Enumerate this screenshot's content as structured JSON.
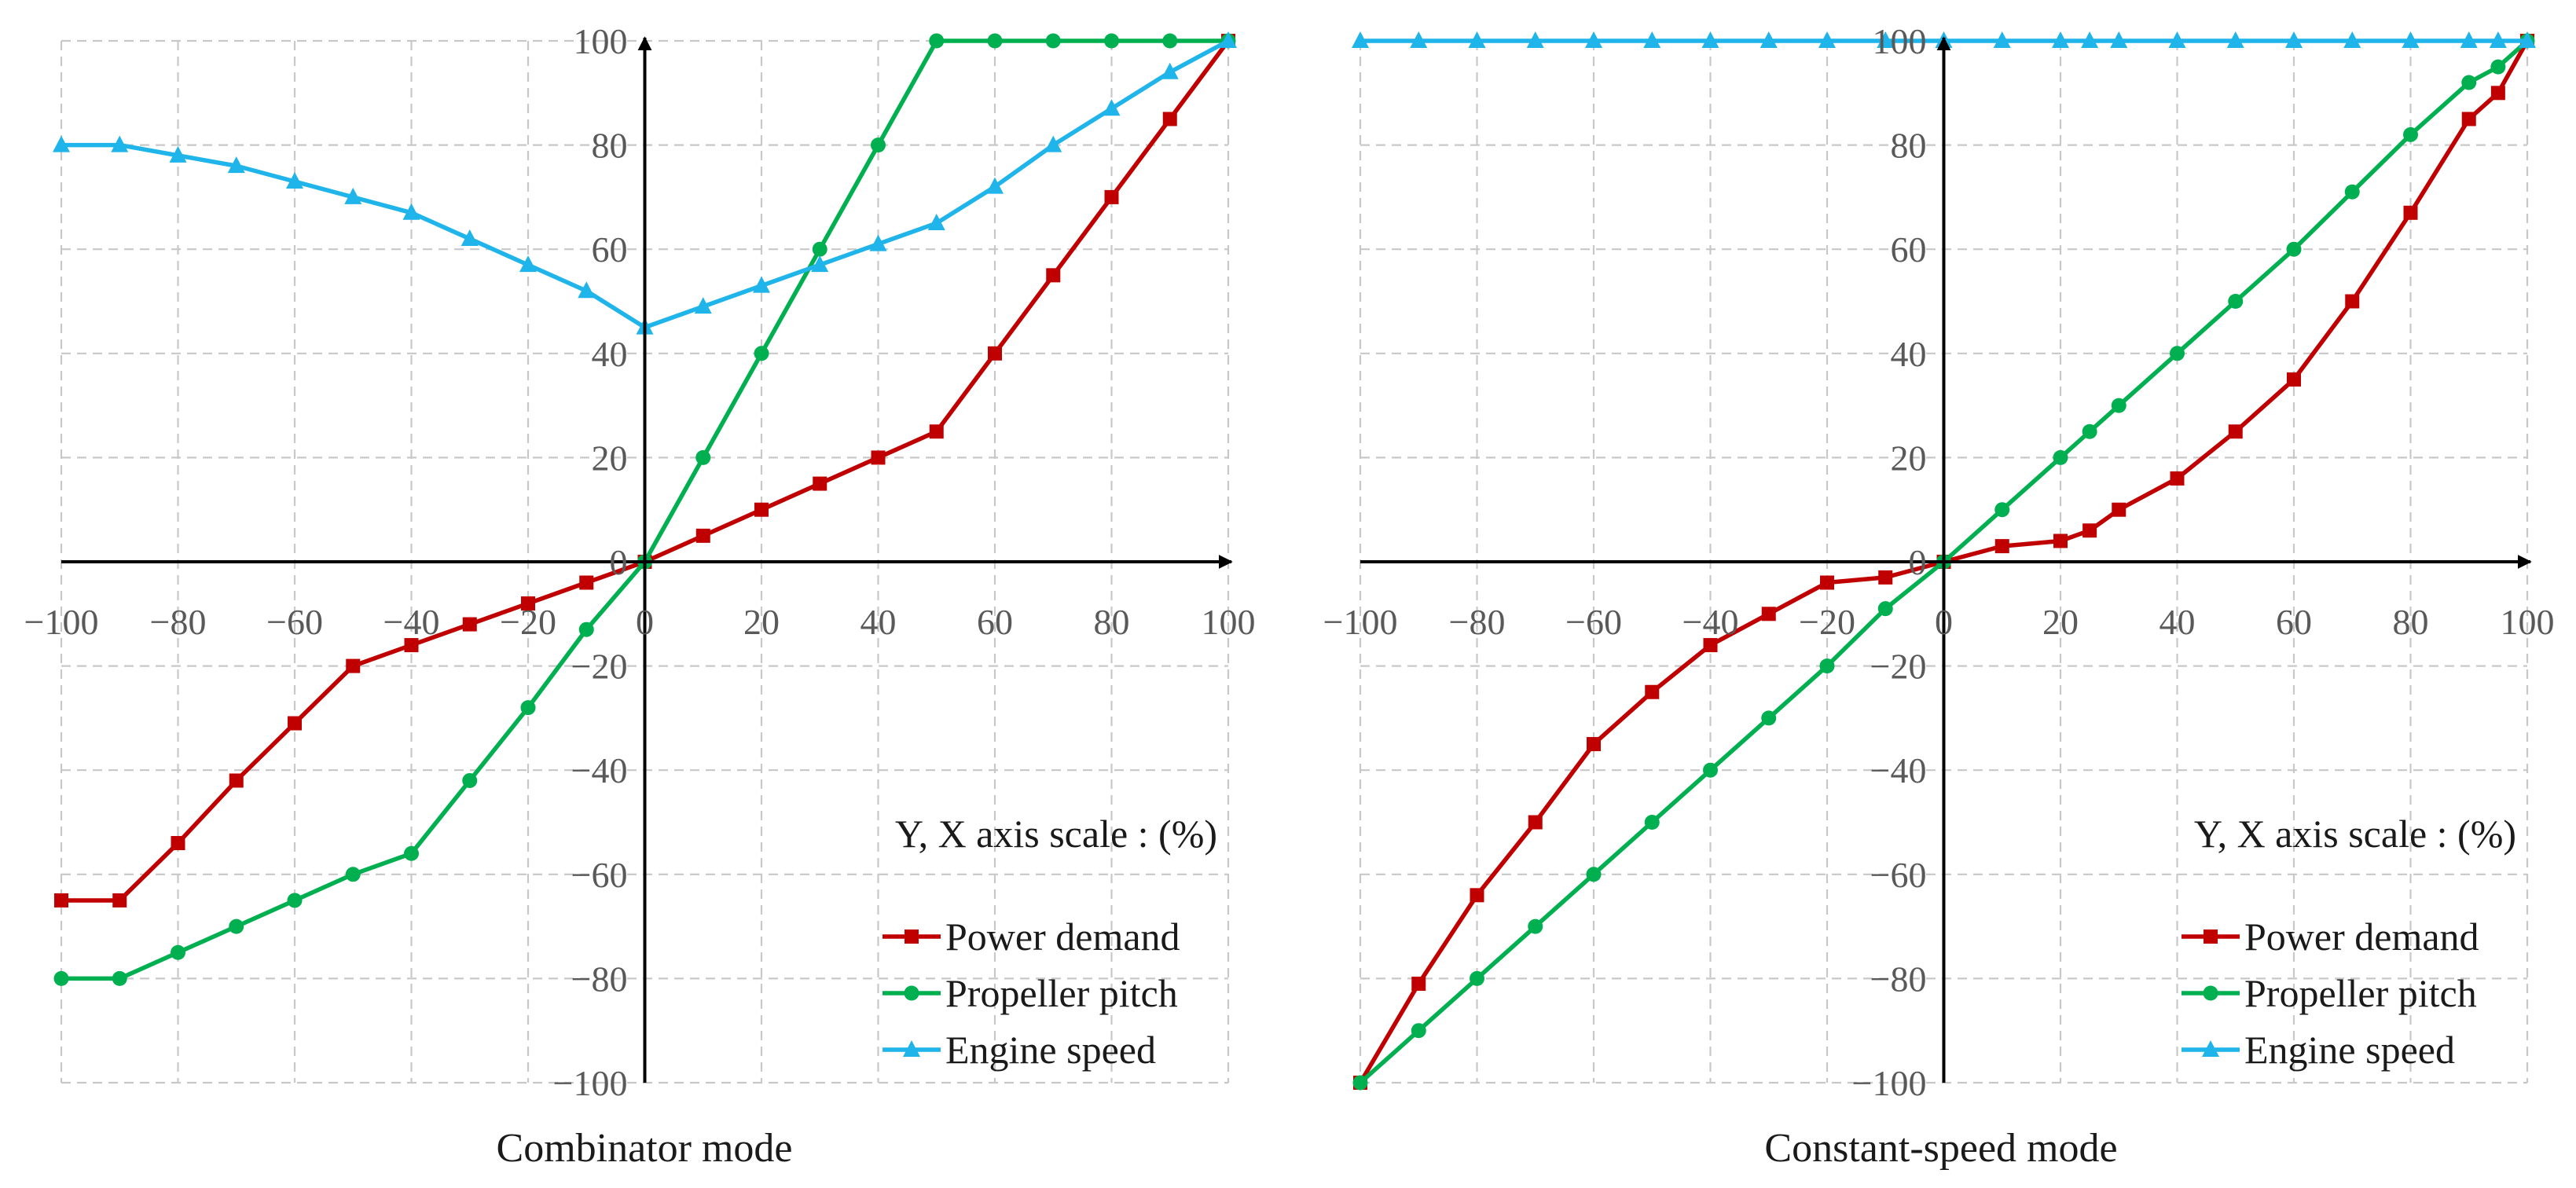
{
  "chart_data": [
    {
      "type": "line",
      "title": "Combinator mode",
      "xlim": [
        -100,
        100
      ],
      "ylim": [
        -100,
        100
      ],
      "xticks": [
        -100,
        -80,
        -60,
        -40,
        -20,
        0,
        20,
        40,
        60,
        80,
        100
      ],
      "yticks": [
        -100,
        -80,
        -60,
        -40,
        -20,
        0,
        20,
        40,
        60,
        80,
        100
      ],
      "tick_labels_x": [
        "−100",
        "−80",
        "−60",
        "−40",
        "−20",
        "0",
        "20",
        "40",
        "60",
        "80",
        "100"
      ],
      "tick_labels_y": [
        "−100",
        "−80",
        "−60",
        "−40",
        "−20",
        "0",
        "20",
        "40",
        "60",
        "80",
        "100"
      ],
      "grid": true,
      "annotation": "Y, X axis scale : (%)",
      "legend_position": "bottom-right",
      "series": [
        {
          "name": "Power demand",
          "color": "#c00000",
          "marker": "square",
          "points": [
            [
              -100,
              -65
            ],
            [
              -90,
              -65
            ],
            [
              -80,
              -54
            ],
            [
              -70,
              -42
            ],
            [
              -60,
              -31
            ],
            [
              -50,
              -20
            ],
            [
              -40,
              -16
            ],
            [
              -30,
              -12
            ],
            [
              -20,
              -8
            ],
            [
              -10,
              -4
            ],
            [
              0,
              0
            ],
            [
              10,
              5
            ],
            [
              20,
              10
            ],
            [
              30,
              15
            ],
            [
              40,
              20
            ],
            [
              50,
              25
            ],
            [
              60,
              40
            ],
            [
              70,
              55
            ],
            [
              80,
              70
            ],
            [
              90,
              85
            ],
            [
              100,
              100
            ]
          ]
        },
        {
          "name": "Propeller pitch",
          "color": "#00b050",
          "marker": "circle",
          "points": [
            [
              -100,
              -80
            ],
            [
              -90,
              -80
            ],
            [
              -80,
              -75
            ],
            [
              -70,
              -70
            ],
            [
              -60,
              -65
            ],
            [
              -50,
              -60
            ],
            [
              -40,
              -56
            ],
            [
              -30,
              -42
            ],
            [
              -20,
              -28
            ],
            [
              -10,
              -13
            ],
            [
              0,
              0
            ],
            [
              10,
              20
            ],
            [
              20,
              40
            ],
            [
              30,
              60
            ],
            [
              40,
              80
            ],
            [
              50,
              100
            ],
            [
              60,
              100
            ],
            [
              70,
              100
            ],
            [
              80,
              100
            ],
            [
              90,
              100
            ],
            [
              100,
              100
            ]
          ]
        },
        {
          "name": "Engine speed",
          "color": "#1fb4ea",
          "marker": "triangle",
          "points": [
            [
              -100,
              80
            ],
            [
              -90,
              80
            ],
            [
              -80,
              78
            ],
            [
              -70,
              76
            ],
            [
              -60,
              73
            ],
            [
              -50,
              70
            ],
            [
              -40,
              67
            ],
            [
              -30,
              62
            ],
            [
              -20,
              57
            ],
            [
              -10,
              52
            ],
            [
              0,
              45
            ],
            [
              10,
              49
            ],
            [
              20,
              53
            ],
            [
              30,
              57
            ],
            [
              40,
              61
            ],
            [
              50,
              65
            ],
            [
              60,
              72
            ],
            [
              70,
              80
            ],
            [
              80,
              87
            ],
            [
              90,
              94
            ],
            [
              100,
              100
            ]
          ]
        }
      ]
    },
    {
      "type": "line",
      "title": "Constant-speed mode",
      "xlim": [
        -100,
        100
      ],
      "ylim": [
        -100,
        100
      ],
      "xticks": [
        -100,
        -80,
        -60,
        -40,
        -20,
        0,
        20,
        40,
        60,
        80,
        100
      ],
      "yticks": [
        -100,
        -80,
        -60,
        -40,
        -20,
        0,
        20,
        40,
        60,
        80,
        100
      ],
      "tick_labels_x": [
        "−100",
        "−80",
        "−60",
        "−40",
        "−20",
        "0",
        "20",
        "40",
        "60",
        "80",
        "100"
      ],
      "tick_labels_y": [
        "−100",
        "−80",
        "−60",
        "−40",
        "−20",
        "0",
        "20",
        "40",
        "60",
        "80",
        "100"
      ],
      "grid": true,
      "annotation": "Y, X axis scale : (%)",
      "legend_position": "bottom-right",
      "series": [
        {
          "name": "Power demand",
          "color": "#c00000",
          "marker": "square",
          "points": [
            [
              -100,
              -100
            ],
            [
              -90,
              -81
            ],
            [
              -80,
              -64
            ],
            [
              -70,
              -50
            ],
            [
              -60,
              -35
            ],
            [
              -50,
              -25
            ],
            [
              -40,
              -16
            ],
            [
              -30,
              -10
            ],
            [
              -20,
              -4
            ],
            [
              -10,
              -3
            ],
            [
              0,
              0
            ],
            [
              10,
              3
            ],
            [
              20,
              4
            ],
            [
              25,
              6
            ],
            [
              30,
              10
            ],
            [
              40,
              16
            ],
            [
              50,
              25
            ],
            [
              60,
              35
            ],
            [
              70,
              50
            ],
            [
              80,
              67
            ],
            [
              90,
              85
            ],
            [
              95,
              90
            ],
            [
              100,
              100
            ]
          ]
        },
        {
          "name": "Propeller pitch",
          "color": "#00b050",
          "marker": "circle",
          "points": [
            [
              -100,
              -100
            ],
            [
              -90,
              -90
            ],
            [
              -80,
              -80
            ],
            [
              -70,
              -70
            ],
            [
              -60,
              -60
            ],
            [
              -50,
              -50
            ],
            [
              -40,
              -40
            ],
            [
              -30,
              -30
            ],
            [
              -20,
              -20
            ],
            [
              -10,
              -9
            ],
            [
              0,
              0
            ],
            [
              10,
              10
            ],
            [
              20,
              20
            ],
            [
              25,
              25
            ],
            [
              30,
              30
            ],
            [
              40,
              40
            ],
            [
              50,
              50
            ],
            [
              60,
              60
            ],
            [
              70,
              71
            ],
            [
              80,
              82
            ],
            [
              90,
              92
            ],
            [
              95,
              95
            ],
            [
              100,
              100
            ]
          ]
        },
        {
          "name": "Engine speed",
          "color": "#1fb4ea",
          "marker": "triangle",
          "points": [
            [
              -100,
              100
            ],
            [
              -90,
              100
            ],
            [
              -80,
              100
            ],
            [
              -70,
              100
            ],
            [
              -60,
              100
            ],
            [
              -50,
              100
            ],
            [
              -40,
              100
            ],
            [
              -30,
              100
            ],
            [
              -20,
              100
            ],
            [
              -10,
              100
            ],
            [
              0,
              100
            ],
            [
              10,
              100
            ],
            [
              20,
              100
            ],
            [
              25,
              100
            ],
            [
              30,
              100
            ],
            [
              40,
              100
            ],
            [
              50,
              100
            ],
            [
              60,
              100
            ],
            [
              70,
              100
            ],
            [
              80,
              100
            ],
            [
              90,
              100
            ],
            [
              95,
              100
            ],
            [
              100,
              100
            ]
          ]
        }
      ]
    }
  ]
}
